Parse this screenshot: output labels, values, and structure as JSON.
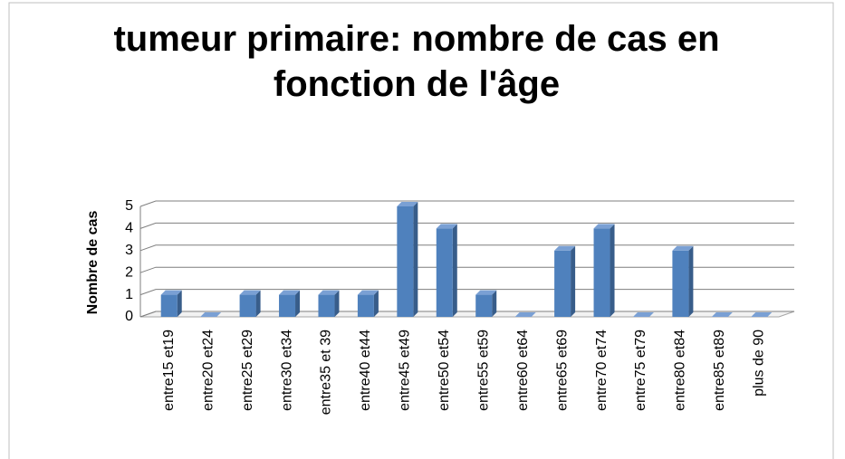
{
  "chart_data": {
    "type": "bar",
    "title": "tumeur primaire: nombre de cas en fonction de l'âge",
    "y_label": "Nombre de cas",
    "categories": [
      "entre15 et19",
      "entre20 et24",
      "entre25 et29",
      "entre30 et34",
      "entre35 et 39",
      "entre40 et44",
      "entre45 et49",
      "entre50 et54",
      "entre55 et59",
      "entre60 et64",
      "entre65 et69",
      "entre70 et74",
      "entre75 et79",
      "entre80 et84",
      "entre85 et89",
      "plus de 90"
    ],
    "values": [
      1,
      0,
      1,
      1,
      1,
      1,
      5,
      4,
      1,
      0,
      3,
      4,
      0,
      3,
      0,
      0
    ],
    "color": "#4f81bd",
    "ylim": [
      0,
      5
    ],
    "yticks": [
      0,
      1,
      2,
      3,
      4,
      5
    ],
    "grid": true
  }
}
